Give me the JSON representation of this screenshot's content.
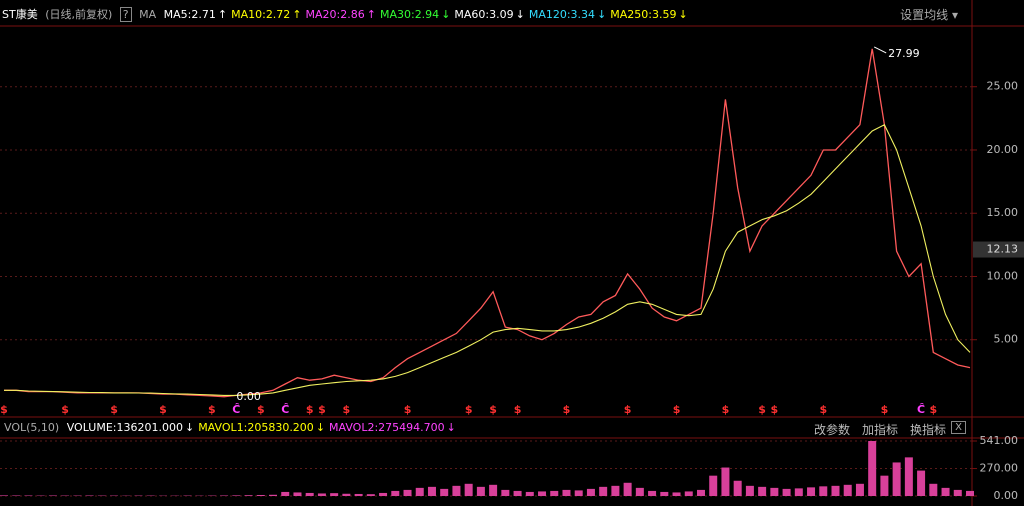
{
  "header": {
    "name": "ST康美",
    "mode": "(日线,前复权)",
    "help": "?",
    "indicator": "MA",
    "ma": [
      {
        "label": "MA5:2.71",
        "arrow": "↑",
        "color": "#ffffff"
      },
      {
        "label": "MA10:2.72",
        "arrow": "↑",
        "color": "#ffff00"
      },
      {
        "label": "MA20:2.86",
        "arrow": "↑",
        "color": "#ff44ff"
      },
      {
        "label": "MA30:2.94",
        "arrow": "↓",
        "color": "#33ff33"
      },
      {
        "label": "MA60:3.09",
        "arrow": "↓",
        "color": "#ffffff"
      },
      {
        "label": "MA120:3.34",
        "arrow": "↓",
        "color": "#33ddff"
      },
      {
        "label": "MA250:3.59",
        "arrow": "↓",
        "color": "#ffff00"
      }
    ],
    "settings": "设置均线 ▾"
  },
  "chart_data": [
    {
      "type": "line",
      "series": [
        {
          "color": "#ff5a5a",
          "values": [
            1.0,
            1.0,
            0.9,
            0.9,
            0.9,
            0.85,
            0.8,
            0.8,
            0.8,
            0.8,
            0.8,
            0.8,
            0.75,
            0.7,
            0.7,
            0.65,
            0.6,
            0.55,
            0.5,
            0.6,
            0.7,
            0.8,
            1.0,
            1.5,
            2.0,
            1.8,
            1.9,
            2.2,
            2.0,
            1.8,
            1.7,
            2.0,
            2.8,
            3.5,
            4.0,
            4.5,
            5.0,
            5.5,
            6.5,
            7.5,
            8.8,
            6.0,
            5.8,
            5.3,
            5.0,
            5.5,
            6.2,
            6.8,
            7.0,
            8.0,
            8.5,
            10.2,
            9.0,
            7.5,
            6.8,
            6.5,
            7.0,
            7.5,
            15,
            24,
            17,
            12,
            14,
            15,
            16,
            17,
            18,
            20,
            20,
            21,
            22,
            27.99,
            22,
            12,
            10,
            11,
            4,
            3.5,
            3,
            2.8
          ]
        },
        {
          "color": "#f0f060",
          "values": [
            1.0,
            1.0,
            0.95,
            0.92,
            0.9,
            0.88,
            0.85,
            0.83,
            0.82,
            0.8,
            0.8,
            0.79,
            0.78,
            0.75,
            0.72,
            0.7,
            0.67,
            0.64,
            0.6,
            0.6,
            0.65,
            0.7,
            0.8,
            1.0,
            1.2,
            1.4,
            1.5,
            1.6,
            1.7,
            1.75,
            1.8,
            1.9,
            2.1,
            2.4,
            2.8,
            3.2,
            3.6,
            4.0,
            4.5,
            5.0,
            5.6,
            5.8,
            5.9,
            5.8,
            5.7,
            5.7,
            5.8,
            6.0,
            6.3,
            6.7,
            7.2,
            7.8,
            8.0,
            7.8,
            7.4,
            7.0,
            6.9,
            7.0,
            9,
            12,
            13.5,
            14,
            14.5,
            14.8,
            15.2,
            15.8,
            16.5,
            17.5,
            18.5,
            19.5,
            20.5,
            21.5,
            22,
            20,
            17,
            14,
            10,
            7,
            5,
            4
          ]
        }
      ],
      "ylim": [
        -0.95,
        29.8
      ],
      "yticks": [
        {
          "value": 25,
          "label": "25.00"
        },
        {
          "value": 20,
          "label": "20.00"
        },
        {
          "value": 15,
          "label": "15.00"
        },
        {
          "value": 10,
          "label": "10.00"
        },
        {
          "value": 5,
          "label": "5.00"
        }
      ],
      "grid": true,
      "high": 27.99,
      "low": {
        "value": 0,
        "label": "0.00"
      },
      "last_price": 12.13,
      "signals": [
        "$",
        null,
        null,
        null,
        null,
        "$",
        null,
        null,
        null,
        "$",
        null,
        null,
        null,
        "$",
        null,
        null,
        null,
        "$",
        null,
        "Ĉ",
        null,
        "$",
        null,
        "Ĉ",
        null,
        "$",
        "$",
        null,
        "$",
        null,
        null,
        null,
        null,
        "$",
        null,
        null,
        null,
        null,
        "$",
        null,
        "$",
        null,
        "$",
        null,
        null,
        null,
        "$",
        null,
        null,
        null,
        null,
        "$",
        null,
        null,
        null,
        "$",
        null,
        null,
        null,
        "$",
        null,
        null,
        "$",
        "$",
        null,
        null,
        null,
        "$",
        null,
        null,
        null,
        null,
        "$",
        null,
        null,
        "Ĉ",
        "$",
        null,
        null,
        null
      ]
    },
    {
      "type": "bar",
      "title": "VOL(5,10)",
      "legend": [
        {
          "label": "VOLUME:136201.000",
          "arrow": "↓",
          "color": "#ffffff"
        },
        {
          "label": "MAVOL1:205830.200",
          "arrow": "↓",
          "color": "#ffff00"
        },
        {
          "label": "MAVOL2:275494.700",
          "arrow": "↓",
          "color": "#ff44ff"
        }
      ],
      "buttons": [
        "改参数",
        "加指标",
        "换指标"
      ],
      "close": "X",
      "color": "#d8409a",
      "values": [
        6,
        5,
        5,
        4,
        5,
        4,
        4,
        5,
        4,
        4,
        3,
        4,
        4,
        3,
        3,
        4,
        3,
        4,
        5,
        6,
        8,
        10,
        12,
        40,
        35,
        30,
        25,
        28,
        22,
        20,
        18,
        30,
        50,
        60,
        80,
        90,
        70,
        100,
        120,
        90,
        110,
        60,
        50,
        40,
        45,
        50,
        60,
        55,
        70,
        90,
        100,
        130,
        80,
        50,
        40,
        35,
        45,
        60,
        200,
        280,
        150,
        100,
        90,
        80,
        70,
        75,
        85,
        95,
        100,
        110,
        120,
        541,
        200,
        330,
        380,
        250,
        120,
        80,
        60,
        50
      ],
      "ylim": [
        -68.8,
        570.5
      ],
      "yticks": [
        {
          "value": 541,
          "label": "541.00"
        },
        {
          "value": 270,
          "label": "270.00"
        },
        {
          "value": 0,
          "label": "0.00"
        }
      ],
      "grid": true
    }
  ]
}
